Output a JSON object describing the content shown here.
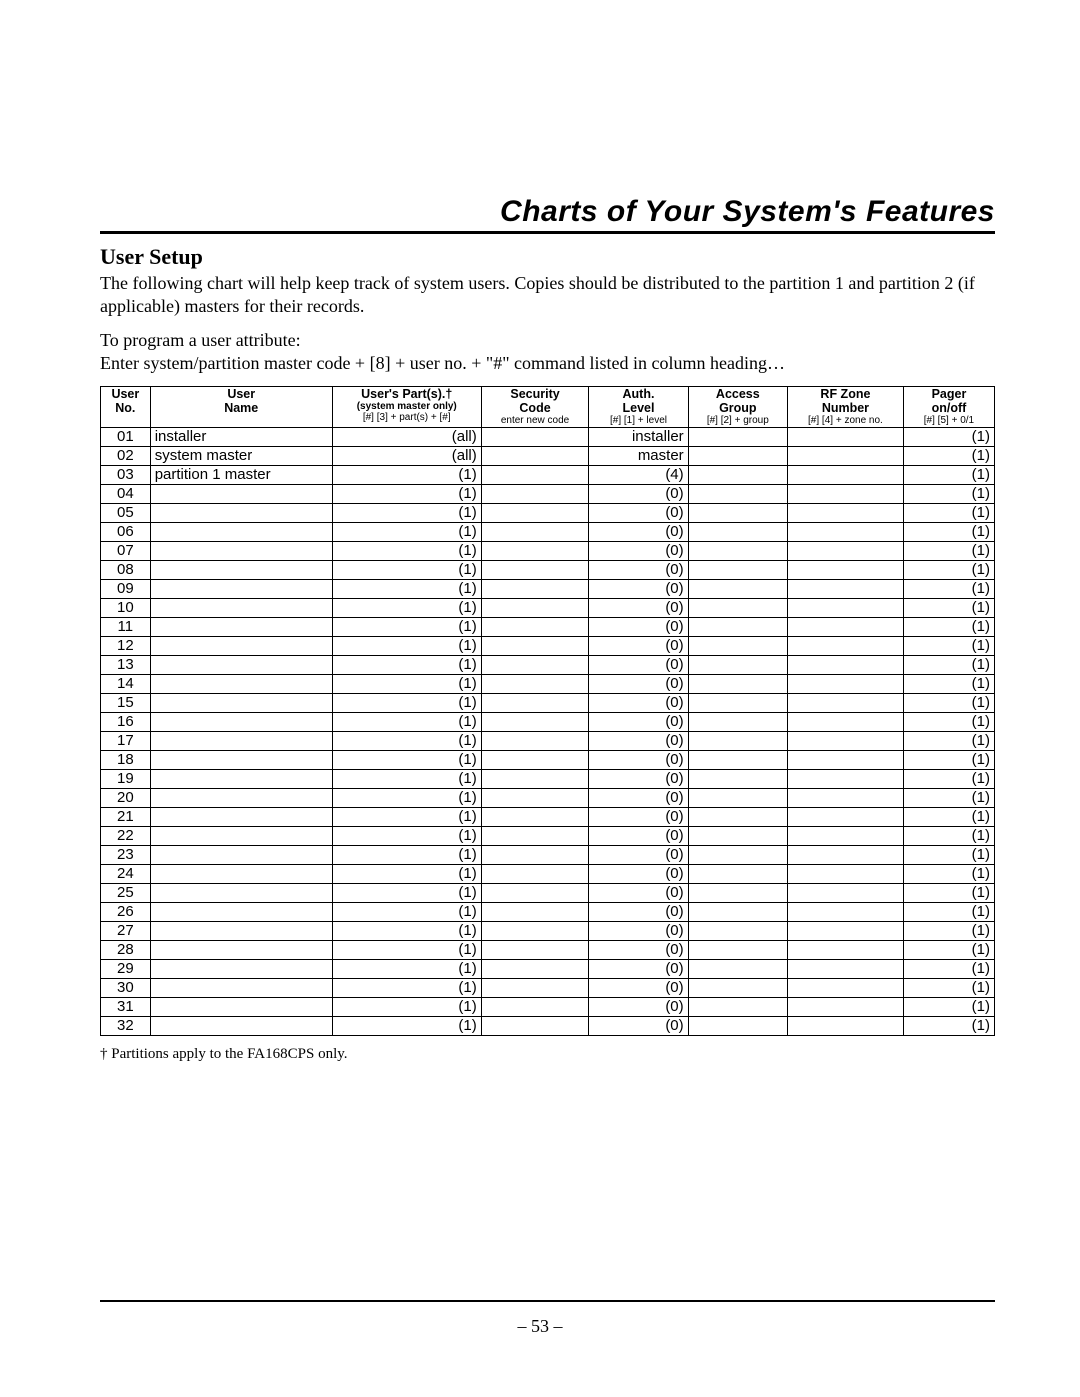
{
  "chapter_title": "Charts of Your System's Features",
  "section_heading": "User Setup",
  "intro_para": "The following chart will help keep track of system users. Copies should be distributed to the partition 1 and partition 2 (if applicable) masters for their records.",
  "program_line1": "To program a user attribute:",
  "program_line2": "Enter system/partition master code + [8] + user no. + \"#\" command listed in column heading…",
  "table": {
    "headers": {
      "no": {
        "l1": "User",
        "l2": "No.",
        "sub": "",
        "cmd": ""
      },
      "name": {
        "l1": "User",
        "l2": "Name",
        "sub": "",
        "cmd": ""
      },
      "parts": {
        "l1": "User's Part(s).†",
        "l2": "",
        "sub": "(system master only)",
        "cmd": "[#] [3] + part(s) + [#]"
      },
      "code": {
        "l1": "Security",
        "l2": "Code",
        "sub": "",
        "cmd": "enter new code"
      },
      "auth": {
        "l1": "Auth.",
        "l2": "Level",
        "sub": "",
        "cmd": "[#] [1] + level"
      },
      "access": {
        "l1": "Access",
        "l2": "Group",
        "sub": "",
        "cmd": "[#] [2] + group"
      },
      "rf": {
        "l1": "RF Zone",
        "l2": "Number",
        "sub": "",
        "cmd": "[#] [4] + zone no."
      },
      "pager": {
        "l1": "Pager",
        "l2": "on/off",
        "sub": "",
        "cmd": "[#] [5] + 0/1"
      }
    },
    "rows": [
      {
        "no": "01",
        "name": "installer",
        "parts": "(all)",
        "code": "",
        "auth": "installer",
        "access": "",
        "rf": "",
        "pager": "(1)"
      },
      {
        "no": "02",
        "name": "system master",
        "parts": "(all)",
        "code": "",
        "auth": "master",
        "access": "",
        "rf": "",
        "pager": "(1)"
      },
      {
        "no": "03",
        "name": "partition 1 master",
        "parts": "(1)",
        "code": "",
        "auth": "(4)",
        "access": "",
        "rf": "",
        "pager": "(1)"
      },
      {
        "no": "04",
        "name": "",
        "parts": "(1)",
        "code": "",
        "auth": "(0)",
        "access": "",
        "rf": "",
        "pager": "(1)"
      },
      {
        "no": "05",
        "name": "",
        "parts": "(1)",
        "code": "",
        "auth": "(0)",
        "access": "",
        "rf": "",
        "pager": "(1)"
      },
      {
        "no": "06",
        "name": "",
        "parts": "(1)",
        "code": "",
        "auth": "(0)",
        "access": "",
        "rf": "",
        "pager": "(1)"
      },
      {
        "no": "07",
        "name": "",
        "parts": "(1)",
        "code": "",
        "auth": "(0)",
        "access": "",
        "rf": "",
        "pager": "(1)"
      },
      {
        "no": "08",
        "name": "",
        "parts": "(1)",
        "code": "",
        "auth": "(0)",
        "access": "",
        "rf": "",
        "pager": "(1)"
      },
      {
        "no": "09",
        "name": "",
        "parts": "(1)",
        "code": "",
        "auth": "(0)",
        "access": "",
        "rf": "",
        "pager": "(1)"
      },
      {
        "no": "10",
        "name": "",
        "parts": "(1)",
        "code": "",
        "auth": "(0)",
        "access": "",
        "rf": "",
        "pager": "(1)"
      },
      {
        "no": "11",
        "name": "",
        "parts": "(1)",
        "code": "",
        "auth": "(0)",
        "access": "",
        "rf": "",
        "pager": "(1)"
      },
      {
        "no": "12",
        "name": "",
        "parts": "(1)",
        "code": "",
        "auth": "(0)",
        "access": "",
        "rf": "",
        "pager": "(1)"
      },
      {
        "no": "13",
        "name": "",
        "parts": "(1)",
        "code": "",
        "auth": "(0)",
        "access": "",
        "rf": "",
        "pager": "(1)"
      },
      {
        "no": "14",
        "name": "",
        "parts": "(1)",
        "code": "",
        "auth": "(0)",
        "access": "",
        "rf": "",
        "pager": "(1)"
      },
      {
        "no": "15",
        "name": "",
        "parts": "(1)",
        "code": "",
        "auth": "(0)",
        "access": "",
        "rf": "",
        "pager": "(1)"
      },
      {
        "no": "16",
        "name": "",
        "parts": "(1)",
        "code": "",
        "auth": "(0)",
        "access": "",
        "rf": "",
        "pager": "(1)"
      },
      {
        "no": "17",
        "name": "",
        "parts": "(1)",
        "code": "",
        "auth": "(0)",
        "access": "",
        "rf": "",
        "pager": "(1)"
      },
      {
        "no": "18",
        "name": "",
        "parts": "(1)",
        "code": "",
        "auth": "(0)",
        "access": "",
        "rf": "",
        "pager": "(1)"
      },
      {
        "no": "19",
        "name": "",
        "parts": "(1)",
        "code": "",
        "auth": "(0)",
        "access": "",
        "rf": "",
        "pager": "(1)"
      },
      {
        "no": "20",
        "name": "",
        "parts": "(1)",
        "code": "",
        "auth": "(0)",
        "access": "",
        "rf": "",
        "pager": "(1)"
      },
      {
        "no": "21",
        "name": "",
        "parts": "(1)",
        "code": "",
        "auth": "(0)",
        "access": "",
        "rf": "",
        "pager": "(1)"
      },
      {
        "no": "22",
        "name": "",
        "parts": "(1)",
        "code": "",
        "auth": "(0)",
        "access": "",
        "rf": "",
        "pager": "(1)"
      },
      {
        "no": "23",
        "name": "",
        "parts": "(1)",
        "code": "",
        "auth": "(0)",
        "access": "",
        "rf": "",
        "pager": "(1)"
      },
      {
        "no": "24",
        "name": "",
        "parts": "(1)",
        "code": "",
        "auth": "(0)",
        "access": "",
        "rf": "",
        "pager": "(1)"
      },
      {
        "no": "25",
        "name": "",
        "parts": "(1)",
        "code": "",
        "auth": "(0)",
        "access": "",
        "rf": "",
        "pager": "(1)"
      },
      {
        "no": "26",
        "name": "",
        "parts": "(1)",
        "code": "",
        "auth": "(0)",
        "access": "",
        "rf": "",
        "pager": "(1)"
      },
      {
        "no": "27",
        "name": "",
        "parts": "(1)",
        "code": "",
        "auth": "(0)",
        "access": "",
        "rf": "",
        "pager": "(1)"
      },
      {
        "no": "28",
        "name": "",
        "parts": "(1)",
        "code": "",
        "auth": "(0)",
        "access": "",
        "rf": "",
        "pager": "(1)"
      },
      {
        "no": "29",
        "name": "",
        "parts": "(1)",
        "code": "",
        "auth": "(0)",
        "access": "",
        "rf": "",
        "pager": "(1)"
      },
      {
        "no": "30",
        "name": "",
        "parts": "(1)",
        "code": "",
        "auth": "(0)",
        "access": "",
        "rf": "",
        "pager": "(1)"
      },
      {
        "no": "31",
        "name": "",
        "parts": "(1)",
        "code": "",
        "auth": "(0)",
        "access": "",
        "rf": "",
        "pager": "(1)"
      },
      {
        "no": "32",
        "name": "",
        "parts": "(1)",
        "code": "",
        "auth": "(0)",
        "access": "",
        "rf": "",
        "pager": "(1)"
      }
    ]
  },
  "footnote": "† Partitions apply to the FA168CPS only.",
  "page_number": "– 53 –"
}
